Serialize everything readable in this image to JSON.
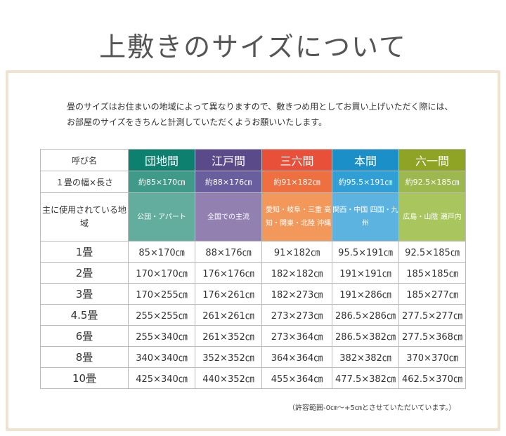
{
  "title": "上敷きのサイズについて",
  "intro": [
    "畳のサイズはお住まいの地域によって異なりますので、敷きつめ用としてお買い上げいただく際には、",
    "お部屋のサイズをきちんと計測していただくようお願いいたします。"
  ],
  "header_label": "呼び名",
  "width_label": "１畳の幅×長さ",
  "region_label": "主に使用されている地域",
  "columns": [
    {
      "name": "団地間",
      "size": "約85×170㎝",
      "region": "公団・アパート",
      "colors": [
        "#0e8070",
        "#3f9a8a",
        "#62ad9d"
      ]
    },
    {
      "name": "江戸間",
      "size": "約88×176㎝",
      "region": "全国での主流",
      "colors": [
        "#5a4a8a",
        "#6a5f9e",
        "#9180b0"
      ]
    },
    {
      "name": "三六間",
      "size": "約91×182㎝",
      "region": "愛知・岐阜・三重 高知・関東・北陸 沖縄",
      "colors": [
        "#e8503a",
        "#ee7040",
        "#f2985a"
      ]
    },
    {
      "name": "本間",
      "size": "約95.5×191㎝",
      "region": "関西・中国 四国・九州",
      "colors": [
        "#1a8fc8",
        "#2f9fd6",
        "#5db3e0"
      ]
    },
    {
      "name": "六一間",
      "size": "約92.5×185㎝",
      "region": "広島・山陰 瀬戸内",
      "colors": [
        "#8fa324",
        "#9db84e",
        "#a9c65e"
      ]
    }
  ],
  "rows": [
    {
      "label": "1畳",
      "values": [
        "85×170㎝",
        "88×176㎝",
        "91×182㎝",
        "95.5×191㎝",
        "92.5×185㎝"
      ]
    },
    {
      "label": "2畳",
      "values": [
        "170×170㎝",
        "176×176㎝",
        "182×182㎝",
        "191×191㎝",
        "185×185㎝"
      ]
    },
    {
      "label": "3畳",
      "values": [
        "170×255㎝",
        "176×261㎝",
        "182×273㎝",
        "191×286㎝",
        "185×277㎝"
      ]
    },
    {
      "label": "4.5畳",
      "values": [
        "255×255㎝",
        "261×261㎝",
        "273×273㎝",
        "286.5×286㎝",
        "277.5×277㎝"
      ]
    },
    {
      "label": "6畳",
      "values": [
        "255×340㎝",
        "261×352㎝",
        "273×364㎝",
        "286.5×382㎝",
        "277.5×368㎝"
      ]
    },
    {
      "label": "8畳",
      "values": [
        "340×340㎝",
        "352×352㎝",
        "364×364㎝",
        "382×382㎝",
        "370×370㎝"
      ]
    },
    {
      "label": "10畳",
      "values": [
        "425×340㎝",
        "440×352㎝",
        "455×364㎝",
        "477.5×382㎝",
        "462.5×370㎝"
      ]
    }
  ],
  "note": "（許容範囲-0㎝～+5㎝とさせていただいています。）"
}
